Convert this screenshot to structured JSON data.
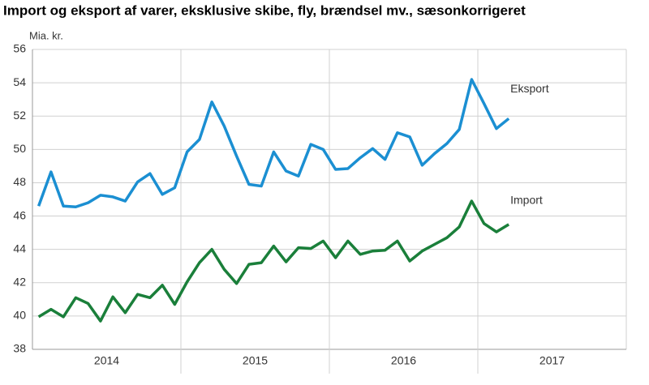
{
  "chart_data": {
    "type": "line",
    "title": "Import og eksport af varer, eksklusive skibe, fly, brændsel mv., sæsonkorrigeret",
    "y_unit": "Mia. kr.",
    "x_labels": [
      "2014",
      "2015",
      "2016",
      "2017"
    ],
    "ylim": [
      38,
      56
    ],
    "yticks": [
      38,
      40,
      42,
      44,
      46,
      48,
      50,
      52,
      54,
      56
    ],
    "grid": true,
    "series": [
      {
        "name": "Eksport",
        "color": "#1b8fd2",
        "values": [
          46.6,
          48.65,
          46.6,
          46.55,
          46.8,
          47.25,
          47.15,
          46.9,
          48.05,
          48.55,
          47.3,
          47.7,
          49.85,
          50.6,
          52.85,
          51.4,
          49.6,
          47.9,
          47.8,
          49.85,
          48.7,
          48.4,
          50.3,
          50.0,
          48.8,
          48.85,
          49.5,
          50.05,
          49.4,
          51.0,
          50.75,
          49.05,
          49.75,
          50.35,
          51.2,
          54.2,
          52.75,
          51.25,
          51.85
        ]
      },
      {
        "name": "Import",
        "color": "#1a7f3a",
        "values": [
          39.95,
          40.4,
          39.95,
          41.1,
          40.75,
          39.7,
          41.15,
          40.2,
          41.3,
          41.1,
          41.85,
          40.7,
          42.05,
          43.2,
          44.0,
          42.8,
          41.95,
          43.1,
          43.2,
          44.2,
          43.25,
          44.1,
          44.05,
          44.5,
          43.5,
          44.5,
          43.7,
          43.9,
          43.95,
          44.5,
          43.3,
          43.9,
          44.3,
          44.7,
          45.35,
          46.9,
          45.55,
          45.05,
          45.5
        ]
      }
    ]
  }
}
